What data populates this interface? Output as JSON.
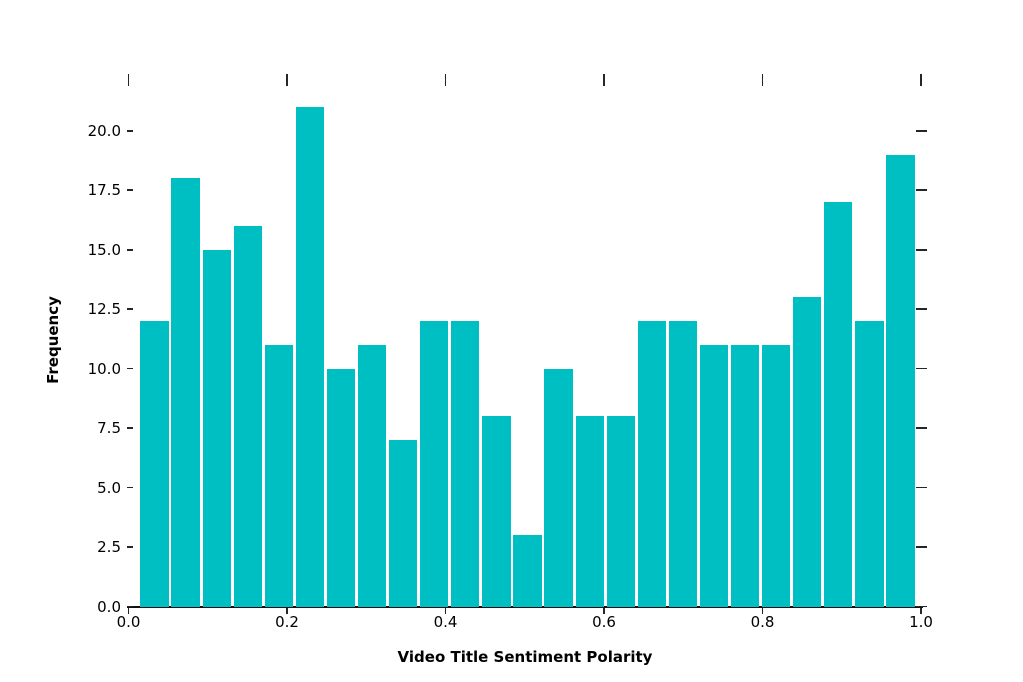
{
  "chart_data": {
    "type": "bar",
    "subtype": "histogram",
    "title": "",
    "xlabel": "Video Title Sentiment Polarity",
    "ylabel": "Frequency",
    "bar_color": "#00bfc3",
    "bar_edge_color": "#ffffff",
    "bin_start": 0.0132,
    "bin_width": 0.03922,
    "frequencies": [
      12,
      18,
      15,
      16,
      11,
      21,
      10,
      11,
      7,
      12,
      12,
      8,
      3,
      10,
      8,
      8,
      12,
      12,
      11,
      11,
      11,
      13,
      17,
      12,
      19
    ],
    "x_ticks": [
      0.0,
      0.2,
      0.4,
      0.6,
      0.8,
      1.0
    ],
    "x_tick_labels": [
      "0.0",
      "0.2",
      "0.4",
      "0.6",
      "0.8",
      "1.0"
    ],
    "y_ticks": [
      0.0,
      2.5,
      5.0,
      7.5,
      10.0,
      12.5,
      15.0,
      17.5,
      20.0
    ],
    "y_tick_labels": [
      "0.0",
      "2.5",
      "5.0",
      "7.5",
      "10.0",
      "12.5",
      "15.0",
      "17.5",
      "20.0"
    ],
    "xlim": [
      0.0,
      1.0
    ],
    "ylim": [
      0.0,
      22.05
    ],
    "grid": false,
    "legend": null,
    "tick_sides": [
      "left",
      "bottom",
      "top",
      "right"
    ],
    "spines": [
      "bottom"
    ]
  }
}
